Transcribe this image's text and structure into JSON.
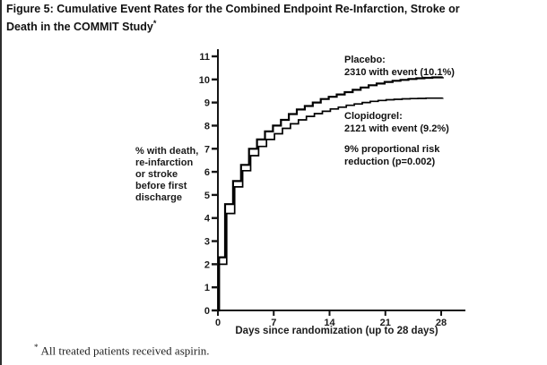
{
  "figure": {
    "title_line1": "Figure 5: Cumulative Event Rates for the Combined Endpoint Re-Infarction, Stroke or",
    "title_line2": "Death in the COMMIT Study",
    "title_sup": "*",
    "footnote_marker": "*",
    "footnote_text": "All treated patients received aspirin.",
    "ink_color": "#1b1b1b",
    "background": "#ffffff"
  },
  "chart_data": {
    "type": "line",
    "subtype": "step-cumulative-incidence",
    "title": "",
    "xlabel": "Days since randomization (up to 28 days)",
    "ylabel": "% with death,\nre-infarction\nor stroke\nbefore first\ndischarge",
    "xlim": [
      0,
      29
    ],
    "ylim": [
      0,
      11
    ],
    "xticks": [
      0,
      7,
      14,
      21,
      28
    ],
    "yticks": [
      0,
      1,
      2,
      3,
      4,
      5,
      6,
      7,
      8,
      9,
      10,
      11
    ],
    "grid": false,
    "legend_position": "annotations-inside-plot",
    "line_color": "#000000",
    "series": [
      {
        "name": "Placebo",
        "annotation": "Placebo:\n2310 with event (10.1%)",
        "events": 2310,
        "event_rate_pct": 10.1,
        "points": [
          [
            0,
            0
          ],
          [
            0.15,
            2.3
          ],
          [
            0.9,
            4.6
          ],
          [
            1.9,
            5.6
          ],
          [
            2.9,
            6.3
          ],
          [
            3.9,
            7.0
          ],
          [
            4.9,
            7.4
          ],
          [
            5.9,
            7.75
          ],
          [
            6.9,
            8.0
          ],
          [
            7.9,
            8.25
          ],
          [
            8.9,
            8.5
          ],
          [
            9.9,
            8.7
          ],
          [
            10.9,
            8.85
          ],
          [
            11.9,
            9.0
          ],
          [
            12.9,
            9.15
          ],
          [
            13.9,
            9.25
          ],
          [
            14.9,
            9.35
          ],
          [
            15.9,
            9.45
          ],
          [
            16.9,
            9.55
          ],
          [
            17.9,
            9.65
          ],
          [
            18.9,
            9.75
          ],
          [
            19.9,
            9.82
          ],
          [
            20.9,
            9.89
          ],
          [
            21.9,
            9.94
          ],
          [
            22.9,
            9.98
          ],
          [
            23.9,
            10.02
          ],
          [
            24.9,
            10.05
          ],
          [
            25.9,
            10.07
          ],
          [
            26.9,
            10.09
          ],
          [
            28.2,
            10.1
          ]
        ]
      },
      {
        "name": "Clopidogrel",
        "annotation": "Clopidogrel:\n2121 with event (9.2%)",
        "events": 2121,
        "event_rate_pct": 9.2,
        "points": [
          [
            0,
            0
          ],
          [
            0.15,
            2.0
          ],
          [
            1.1,
            4.2
          ],
          [
            2.1,
            5.35
          ],
          [
            3.1,
            6.05
          ],
          [
            4.1,
            6.7
          ],
          [
            5.1,
            7.1
          ],
          [
            6.1,
            7.4
          ],
          [
            7.1,
            7.65
          ],
          [
            8.1,
            7.88
          ],
          [
            9.1,
            8.08
          ],
          [
            10.1,
            8.25
          ],
          [
            11.1,
            8.4
          ],
          [
            12.1,
            8.52
          ],
          [
            13.1,
            8.62
          ],
          [
            14.1,
            8.72
          ],
          [
            15.1,
            8.8
          ],
          [
            16.1,
            8.88
          ],
          [
            17.1,
            8.94
          ],
          [
            18.1,
            9.0
          ],
          [
            19.1,
            9.05
          ],
          [
            20.1,
            9.09
          ],
          [
            21.1,
            9.12
          ],
          [
            22.1,
            9.14
          ],
          [
            23.1,
            9.16
          ],
          [
            24.1,
            9.17
          ],
          [
            25.1,
            9.18
          ],
          [
            26.1,
            9.19
          ],
          [
            28.2,
            9.2
          ]
        ]
      }
    ],
    "stats_annotation": "9% proportional risk\nreduction (p=0.002)"
  }
}
